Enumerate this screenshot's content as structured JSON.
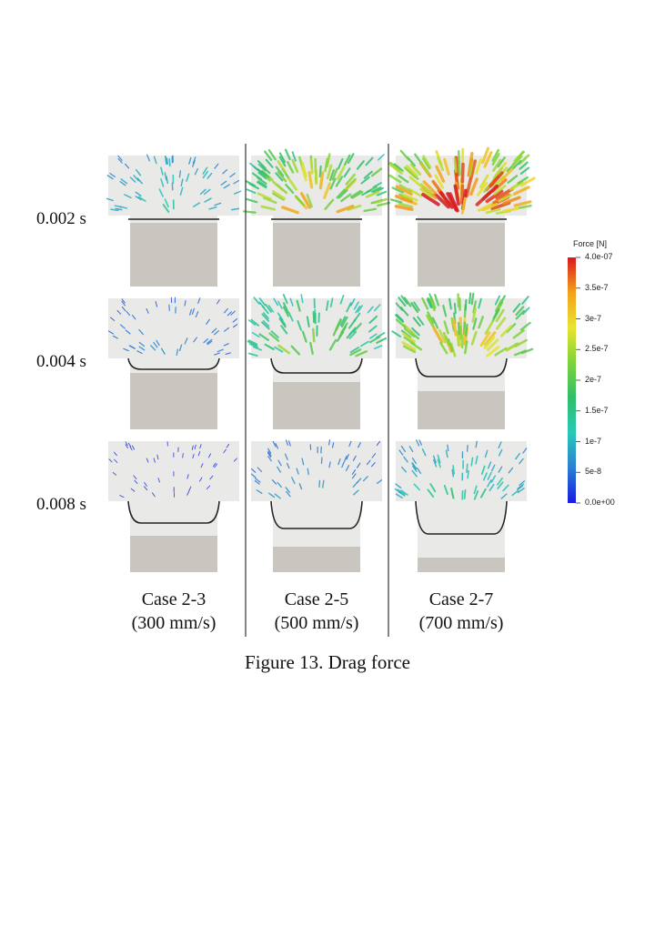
{
  "figure": {
    "caption": "Figure 13. Drag force",
    "time_labels": [
      "0.002 s",
      "0.004 s",
      "0.008 s"
    ],
    "cases": [
      {
        "name": "Case 2-3",
        "speed": "(300 mm/s)"
      },
      {
        "name": "Case 2-5",
        "speed": "(500 mm/s)"
      },
      {
        "name": "Case 2-7",
        "speed": "(700 mm/s)"
      }
    ],
    "intensity": [
      [
        0.25,
        0.65,
        0.85
      ],
      [
        0.15,
        0.5,
        0.7
      ],
      [
        0.05,
        0.2,
        0.35
      ]
    ],
    "colorbar": {
      "title": "Force [N]",
      "ticks": [
        "4.0e-07",
        "3.5e-7",
        "3e-7",
        "2.5e-7",
        "2e-7",
        "1.5e-7",
        "1e-7",
        "5e-8",
        "0.0e+00"
      ],
      "colors": [
        "#d7191c",
        "#f4a11a",
        "#e8e430",
        "#7dd33a",
        "#2fbf6a",
        "#27c9b6",
        "#2a7fd4",
        "#1a1ae0"
      ]
    },
    "colors": {
      "fluid": "#e9e9e7",
      "solid": "#c9c6bf",
      "interface": "#222222",
      "separator": "#333333"
    }
  }
}
